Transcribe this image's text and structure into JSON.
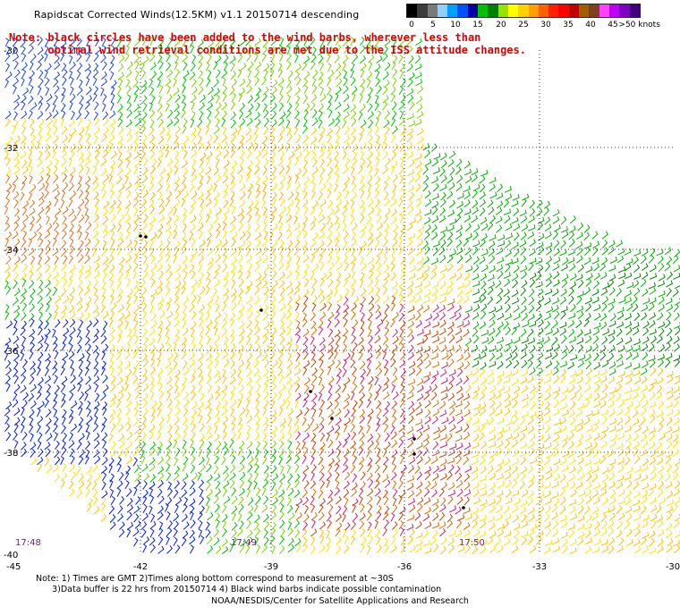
{
  "title": "Rapidscat Corrected Winds(12.5KM) v1.1 20150714 descending",
  "note_line1": "Note: black circles have been added to the wind barbs, wherever less than",
  "note_line2": "      optimal wind retrieval conditions are met due to the ISS attitude changes.",
  "legend": {
    "labels": [
      "0",
      "5",
      "10",
      "15",
      "20",
      "25",
      "30",
      "35",
      "40",
      "45",
      ">50 knots"
    ],
    "colors": [
      "#000000",
      "#3c3c3c",
      "#7a7a7a",
      "#8fd0ff",
      "#00a0ff",
      "#0050ff",
      "#0000a0",
      "#00c000",
      "#008000",
      "#9ae000",
      "#ffff00",
      "#ffd000",
      "#ffa000",
      "#ff6000",
      "#ff2000",
      "#ff0000",
      "#c00000",
      "#a06000",
      "#804020",
      "#ff40ff",
      "#c000ff",
      "#8000c0",
      "#400080"
    ]
  },
  "lat_labels": [
    "-30",
    "-32",
    "-34",
    "-36",
    "-38",
    "-40"
  ],
  "lon_labels": [
    "-45",
    "-42",
    "-39",
    "-36",
    "-33",
    "-30"
  ],
  "time_labels": [
    "17:48",
    "17:49",
    "17:50"
  ],
  "bottom_note_line1": "Note: 1) Times are GMT 2)Times along bottom correspond to measurement at ~30S",
  "bottom_note_line2": "      3)Data buffer is 22 hrs from 20150714 4) Black wind barbs indicate possible contamination",
  "credit": "NOAA/NESDIS/Center for Satellite Applications and Research"
}
